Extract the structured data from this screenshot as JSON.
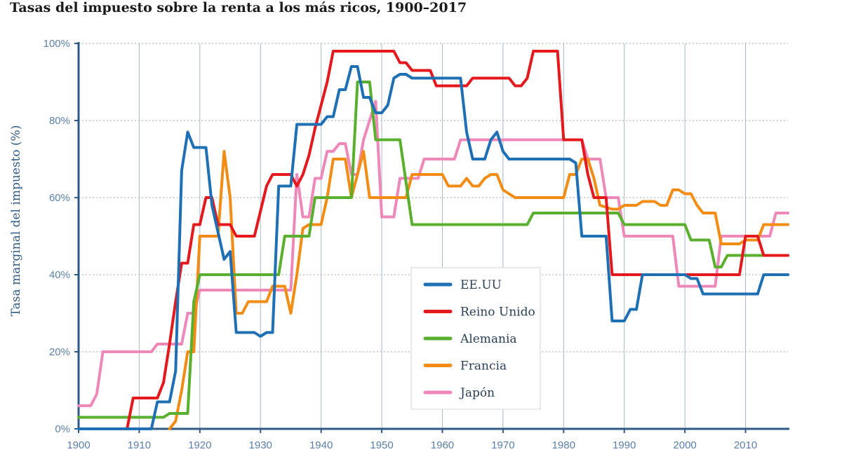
{
  "chart_data": {
    "type": "line",
    "title": "Tasas del impuesto sobre la renta a los más ricos, 1900–2017",
    "ylabel": "Tasa marginal del impuesto (%)",
    "xlabel": "",
    "xlim": [
      1900,
      2017
    ],
    "ylim": [
      0,
      100
    ],
    "x_ticks": [
      1900,
      1910,
      1920,
      1930,
      1940,
      1950,
      1960,
      1970,
      1980,
      1990,
      2000,
      2010
    ],
    "y_ticks": [
      "0%",
      "20%",
      "40%",
      "60%",
      "80%",
      "100%"
    ],
    "grid": true,
    "legend_position": "center-bottom",
    "series": [
      {
        "name": "EE.UU",
        "color": "#1f6fb5",
        "points": [
          [
            1900,
            0
          ],
          [
            1912,
            0
          ],
          [
            1913,
            7
          ],
          [
            1915,
            7
          ],
          [
            1916,
            15
          ],
          [
            1917,
            67
          ],
          [
            1918,
            77
          ],
          [
            1919,
            73
          ],
          [
            1921,
            73
          ],
          [
            1922,
            58
          ],
          [
            1924,
            44
          ],
          [
            1925,
            46
          ],
          [
            1926,
            25
          ],
          [
            1929,
            25
          ],
          [
            1930,
            24
          ],
          [
            1931,
            25
          ],
          [
            1932,
            25
          ],
          [
            1933,
            63
          ],
          [
            1935,
            63
          ],
          [
            1936,
            79
          ],
          [
            1940,
            79
          ],
          [
            1941,
            81
          ],
          [
            1942,
            81
          ],
          [
            1943,
            88
          ],
          [
            1944,
            88
          ],
          [
            1945,
            94
          ],
          [
            1946,
            94
          ],
          [
            1947,
            86
          ],
          [
            1948,
            86
          ],
          [
            1949,
            82
          ],
          [
            1950,
            82
          ],
          [
            1951,
            84
          ],
          [
            1952,
            91
          ],
          [
            1953,
            92
          ],
          [
            1954,
            92
          ],
          [
            1955,
            91
          ],
          [
            1963,
            91
          ],
          [
            1964,
            77
          ],
          [
            1965,
            70
          ],
          [
            1967,
            70
          ],
          [
            1968,
            75
          ],
          [
            1969,
            77
          ],
          [
            1970,
            72
          ],
          [
            1971,
            70
          ],
          [
            1981,
            70
          ],
          [
            1982,
            69
          ],
          [
            1983,
            50
          ],
          [
            1987,
            50
          ],
          [
            1988,
            28
          ],
          [
            1990,
            28
          ],
          [
            1991,
            31
          ],
          [
            1992,
            31
          ],
          [
            1993,
            40
          ],
          [
            2000,
            40
          ],
          [
            2001,
            39
          ],
          [
            2002,
            39
          ],
          [
            2003,
            35
          ],
          [
            2012,
            35
          ],
          [
            2013,
            40
          ],
          [
            2017,
            40
          ]
        ]
      },
      {
        "name": "Reino Unido",
        "color": "#e3191e",
        "points": [
          [
            1908,
            0
          ],
          [
            1909,
            8
          ],
          [
            1913,
            8
          ],
          [
            1914,
            12
          ],
          [
            1915,
            22
          ],
          [
            1916,
            33
          ],
          [
            1917,
            43
          ],
          [
            1918,
            43
          ],
          [
            1919,
            53
          ],
          [
            1920,
            53
          ],
          [
            1921,
            60
          ],
          [
            1922,
            60
          ],
          [
            1923,
            53
          ],
          [
            1925,
            53
          ],
          [
            1926,
            50
          ],
          [
            1929,
            50
          ],
          [
            1931,
            63
          ],
          [
            1932,
            66
          ],
          [
            1935,
            66
          ],
          [
            1936,
            63
          ],
          [
            1937,
            66
          ],
          [
            1938,
            71
          ],
          [
            1939,
            78
          ],
          [
            1941,
            90
          ],
          [
            1942,
            98
          ],
          [
            1952,
            98
          ],
          [
            1953,
            95
          ],
          [
            1954,
            95
          ],
          [
            1955,
            93
          ],
          [
            1958,
            93
          ],
          [
            1959,
            89
          ],
          [
            1964,
            89
          ],
          [
            1965,
            91
          ],
          [
            1971,
            91
          ],
          [
            1972,
            89
          ],
          [
            1973,
            89
          ],
          [
            1974,
            91
          ],
          [
            1975,
            98
          ],
          [
            1979,
            98
          ],
          [
            1980,
            75
          ],
          [
            1983,
            75
          ],
          [
            1984,
            66
          ],
          [
            1985,
            60
          ],
          [
            1987,
            60
          ],
          [
            1988,
            40
          ],
          [
            2009,
            40
          ],
          [
            2010,
            50
          ],
          [
            2012,
            50
          ],
          [
            2013,
            45
          ],
          [
            2017,
            45
          ]
        ]
      },
      {
        "name": "Alemania",
        "color": "#5ab02e",
        "points": [
          [
            1900,
            3
          ],
          [
            1914,
            3
          ],
          [
            1915,
            4
          ],
          [
            1918,
            4
          ],
          [
            1919,
            33
          ],
          [
            1920,
            40
          ],
          [
            1931,
            40
          ],
          [
            1932,
            40
          ],
          [
            1933,
            40
          ],
          [
            1934,
            50
          ],
          [
            1938,
            50
          ],
          [
            1939,
            60
          ],
          [
            1945,
            60
          ],
          [
            1946,
            90
          ],
          [
            1948,
            90
          ],
          [
            1949,
            75
          ],
          [
            1951,
            75
          ],
          [
            1953,
            75
          ],
          [
            1955,
            53
          ],
          [
            1974,
            53
          ],
          [
            1975,
            56
          ],
          [
            1989,
            56
          ],
          [
            1990,
            53
          ],
          [
            2000,
            53
          ],
          [
            2001,
            49
          ],
          [
            2004,
            49
          ],
          [
            2005,
            42
          ],
          [
            2006,
            42
          ],
          [
            2007,
            45
          ],
          [
            2017,
            45
          ]
        ]
      },
      {
        "name": "Francia",
        "color": "#f28c14",
        "points": [
          [
            1915,
            0
          ],
          [
            1916,
            2
          ],
          [
            1917,
            10
          ],
          [
            1918,
            20
          ],
          [
            1919,
            20
          ],
          [
            1920,
            50
          ],
          [
            1923,
            50
          ],
          [
            1924,
            72
          ],
          [
            1925,
            60
          ],
          [
            1926,
            30
          ],
          [
            1927,
            30
          ],
          [
            1928,
            33
          ],
          [
            1931,
            33
          ],
          [
            1932,
            37
          ],
          [
            1934,
            37
          ],
          [
            1935,
            30
          ],
          [
            1936,
            40
          ],
          [
            1937,
            52
          ],
          [
            1938,
            53
          ],
          [
            1940,
            53
          ],
          [
            1941,
            60
          ],
          [
            1942,
            70
          ],
          [
            1944,
            70
          ],
          [
            1945,
            60
          ],
          [
            1947,
            72
          ],
          [
            1948,
            60
          ],
          [
            1954,
            60
          ],
          [
            1955,
            66
          ],
          [
            1960,
            66
          ],
          [
            1961,
            63
          ],
          [
            1963,
            63
          ],
          [
            1964,
            65
          ],
          [
            1965,
            63
          ],
          [
            1966,
            63
          ],
          [
            1967,
            65
          ],
          [
            1968,
            66
          ],
          [
            1969,
            66
          ],
          [
            1970,
            62
          ],
          [
            1971,
            61
          ],
          [
            1972,
            60
          ],
          [
            1980,
            60
          ],
          [
            1981,
            66
          ],
          [
            1982,
            66
          ],
          [
            1983,
            70
          ],
          [
            1984,
            70
          ],
          [
            1985,
            65
          ],
          [
            1986,
            58
          ],
          [
            1988,
            57
          ],
          [
            1989,
            57
          ],
          [
            1990,
            58
          ],
          [
            1992,
            58
          ],
          [
            1993,
            59
          ],
          [
            1995,
            59
          ],
          [
            1996,
            58
          ],
          [
            1997,
            58
          ],
          [
            1998,
            62
          ],
          [
            1999,
            62
          ],
          [
            2000,
            61
          ],
          [
            2001,
            61
          ],
          [
            2002,
            58
          ],
          [
            2003,
            56
          ],
          [
            2005,
            56
          ],
          [
            2006,
            48
          ],
          [
            2009,
            48
          ],
          [
            2010,
            49
          ],
          [
            2012,
            49
          ],
          [
            2013,
            53
          ],
          [
            2017,
            53
          ]
        ]
      },
      {
        "name": "Japón",
        "color": "#ee88b9",
        "points": [
          [
            1900,
            6
          ],
          [
            1902,
            6
          ],
          [
            1903,
            9
          ],
          [
            1904,
            20
          ],
          [
            1912,
            20
          ],
          [
            1913,
            22
          ],
          [
            1917,
            22
          ],
          [
            1918,
            30
          ],
          [
            1919,
            30
          ],
          [
            1920,
            36
          ],
          [
            1935,
            36
          ],
          [
            1936,
            66
          ],
          [
            1937,
            55
          ],
          [
            1938,
            55
          ],
          [
            1939,
            65
          ],
          [
            1940,
            65
          ],
          [
            1941,
            72
          ],
          [
            1942,
            72
          ],
          [
            1943,
            74
          ],
          [
            1944,
            74
          ],
          [
            1945,
            66
          ],
          [
            1946,
            66
          ],
          [
            1947,
            75
          ],
          [
            1949,
            85
          ],
          [
            1950,
            55
          ],
          [
            1952,
            55
          ],
          [
            1953,
            65
          ],
          [
            1956,
            65
          ],
          [
            1957,
            70
          ],
          [
            1962,
            70
          ],
          [
            1963,
            75
          ],
          [
            1983,
            75
          ],
          [
            1984,
            70
          ],
          [
            1986,
            70
          ],
          [
            1987,
            60
          ],
          [
            1989,
            60
          ],
          [
            1990,
            50
          ],
          [
            1998,
            50
          ],
          [
            1999,
            37
          ],
          [
            2004,
            37
          ],
          [
            2005,
            37
          ],
          [
            2006,
            50
          ],
          [
            2014,
            50
          ],
          [
            2015,
            56
          ],
          [
            2017,
            56
          ]
        ]
      }
    ]
  }
}
